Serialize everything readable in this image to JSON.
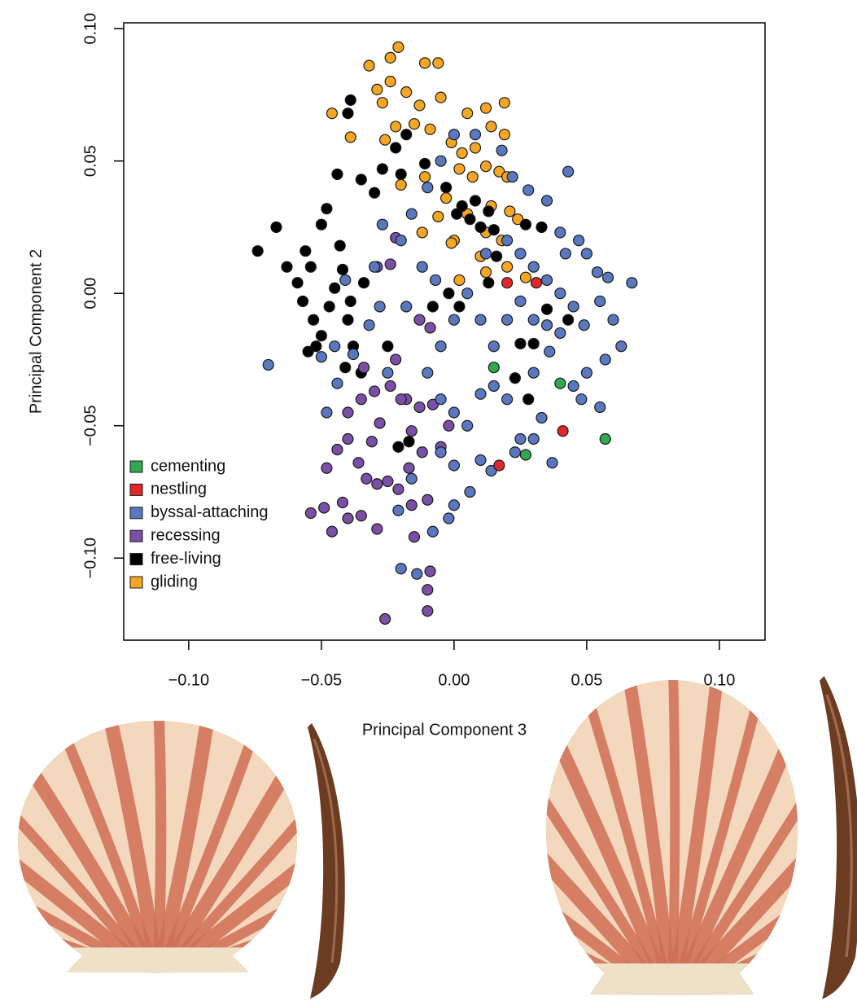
{
  "chart_data": {
    "type": "scatter",
    "xlabel": "Principal Component 3",
    "ylabel": "Principal Component 2",
    "xlim": [
      -0.1245,
      0.1172
    ],
    "ylim": [
      -0.131,
      0.1022
    ],
    "xticks": [
      {
        "value": -0.1,
        "label": "−0.10"
      },
      {
        "value": -0.05,
        "label": "−0.05"
      },
      {
        "value": 0,
        "label": "0.00"
      },
      {
        "value": 0.05,
        "label": "0.05"
      },
      {
        "value": 0.1,
        "label": "0.10"
      }
    ],
    "yticks": [
      {
        "value": -0.1,
        "label": "−0.10"
      },
      {
        "value": -0.05,
        "label": "−0.05"
      },
      {
        "value": 0,
        "label": "0.00"
      },
      {
        "value": 0.05,
        "label": "0.05"
      },
      {
        "value": 0.1,
        "label": "0.10"
      }
    ],
    "legend_position": "lower left",
    "series": [
      {
        "name": "cementing",
        "color": "#2fa84f",
        "x": [
          0.015,
          0.04,
          0.027,
          0.057
        ],
        "y": [
          -0.028,
          -0.034,
          -0.061,
          -0.055
        ]
      },
      {
        "name": "nestling",
        "color": "#e3262a",
        "x": [
          0.02,
          0.031,
          0.041,
          0.017
        ],
        "y": [
          0.004,
          0.004,
          -0.052,
          -0.065
        ]
      },
      {
        "name": "byssal-attaching",
        "color": "#5a78c0",
        "x": [
          -0.07,
          -0.048,
          -0.05,
          -0.044,
          -0.038,
          -0.032,
          -0.025,
          -0.018,
          -0.02,
          -0.016,
          -0.01,
          -0.005,
          0.0,
          0.008,
          0.018,
          0.022,
          0.028,
          0.035,
          0.043,
          0.04,
          0.047,
          0.05,
          0.054,
          0.058,
          0.067,
          0.055,
          0.06,
          0.063,
          0.057,
          0.05,
          0.045,
          0.055,
          0.048,
          0.036,
          0.03,
          0.025,
          0.02,
          0.015,
          0.01,
          0.005,
          0.0,
          -0.005,
          -0.01,
          -0.005,
          0.0,
          0.005,
          0.01,
          0.02,
          0.025,
          0.03,
          0.037,
          0.023,
          0.01,
          0.014,
          0.006,
          -0.002,
          0.0,
          -0.008,
          -0.02,
          -0.014,
          -0.021,
          -0.016,
          -0.005,
          0.0,
          0.03,
          0.035,
          0.04,
          0.045,
          0.04,
          0.035,
          0.03,
          0.02,
          0.025,
          0.012,
          -0.012,
          -0.007,
          0.033,
          0.015,
          0.042,
          0.049,
          -0.027,
          -0.03,
          -0.028,
          -0.045,
          -0.041
        ],
        "y": [
          -0.027,
          -0.045,
          -0.024,
          -0.034,
          -0.023,
          -0.012,
          -0.03,
          -0.005,
          0.02,
          0.03,
          0.04,
          0.05,
          0.06,
          0.06,
          0.054,
          0.044,
          0.039,
          0.035,
          0.046,
          0.023,
          0.02,
          0.015,
          0.008,
          0.006,
          0.004,
          -0.003,
          -0.01,
          -0.02,
          -0.025,
          -0.03,
          -0.035,
          -0.043,
          -0.04,
          -0.022,
          -0.01,
          -0.003,
          -0.01,
          -0.02,
          -0.01,
          0.0,
          -0.01,
          -0.02,
          -0.03,
          -0.04,
          -0.045,
          -0.05,
          -0.038,
          -0.04,
          -0.055,
          -0.055,
          -0.064,
          -0.06,
          -0.063,
          -0.067,
          -0.075,
          -0.085,
          -0.08,
          -0.09,
          -0.104,
          -0.106,
          -0.082,
          -0.07,
          -0.06,
          -0.065,
          0.01,
          0.005,
          0.0,
          -0.005,
          -0.015,
          -0.012,
          -0.03,
          0.02,
          0.015,
          0.015,
          0.01,
          0.005,
          -0.047,
          -0.035,
          0.015,
          -0.012,
          0.026,
          0.01,
          -0.005,
          -0.02,
          0.005
        ]
      },
      {
        "name": "recessing",
        "color": "#7b4fa6",
        "x": [
          -0.054,
          -0.049,
          -0.046,
          -0.042,
          -0.04,
          -0.035,
          -0.048,
          -0.044,
          -0.04,
          -0.036,
          -0.033,
          -0.029,
          -0.025,
          -0.021,
          -0.031,
          -0.028,
          -0.04,
          -0.035,
          -0.03,
          -0.024,
          -0.018,
          -0.013,
          -0.008,
          -0.016,
          -0.012,
          -0.017,
          -0.01,
          -0.016,
          -0.015,
          -0.029,
          -0.026,
          -0.009,
          -0.01,
          -0.01,
          -0.034,
          -0.022,
          -0.029,
          -0.024,
          -0.013,
          -0.022,
          -0.009,
          -0.02,
          -0.002,
          -0.005
        ],
        "y": [
          -0.083,
          -0.081,
          -0.09,
          -0.079,
          -0.085,
          -0.084,
          -0.066,
          -0.059,
          -0.055,
          -0.064,
          -0.07,
          -0.072,
          -0.071,
          -0.074,
          -0.056,
          -0.049,
          -0.045,
          -0.04,
          -0.037,
          -0.035,
          -0.04,
          -0.043,
          -0.042,
          -0.052,
          -0.06,
          -0.066,
          -0.078,
          -0.08,
          -0.092,
          -0.089,
          -0.123,
          -0.105,
          -0.112,
          -0.12,
          -0.028,
          -0.025,
          0.01,
          0.011,
          -0.01,
          0.021,
          -0.013,
          -0.04,
          -0.05,
          -0.058
        ]
      },
      {
        "name": "free-living",
        "color": "#000000",
        "x": [
          -0.074,
          -0.067,
          -0.063,
          -0.059,
          -0.056,
          -0.054,
          -0.057,
          -0.053,
          -0.05,
          -0.055,
          -0.052,
          -0.047,
          -0.045,
          -0.042,
          -0.05,
          -0.048,
          -0.044,
          -0.039,
          -0.04,
          -0.035,
          -0.03,
          -0.027,
          -0.022,
          -0.018,
          -0.011,
          -0.04,
          -0.038,
          -0.041,
          -0.035,
          -0.025,
          -0.039,
          -0.043,
          -0.034,
          -0.021,
          -0.017,
          0.003,
          0.006,
          0.01,
          0.013,
          0.001,
          0.016,
          0.008,
          0.015,
          -0.003,
          0.002,
          0.025,
          0.03,
          0.023,
          0.028,
          0.035,
          0.043,
          0.027,
          0.033,
          0.013,
          -0.008,
          -0.002,
          -0.02
        ],
        "y": [
          0.016,
          0.025,
          0.01,
          0.004,
          0.016,
          0.01,
          -0.003,
          -0.01,
          -0.016,
          -0.022,
          -0.02,
          -0.005,
          0.002,
          0.009,
          0.026,
          0.032,
          0.045,
          0.073,
          0.068,
          0.043,
          0.038,
          0.047,
          0.055,
          0.06,
          0.049,
          -0.01,
          -0.02,
          -0.028,
          -0.03,
          -0.02,
          -0.003,
          0.018,
          0.004,
          -0.058,
          -0.056,
          0.033,
          0.028,
          0.025,
          0.031,
          0.03,
          0.014,
          0.035,
          0.024,
          0.04,
          -0.005,
          -0.019,
          -0.019,
          -0.032,
          -0.04,
          -0.006,
          -0.01,
          0.026,
          0.025,
          0.004,
          -0.005,
          0.0,
          0.045
        ]
      },
      {
        "name": "gliding",
        "color": "#f5a623",
        "x": [
          -0.021,
          -0.024,
          -0.032,
          -0.011,
          -0.006,
          -0.029,
          -0.024,
          -0.018,
          -0.013,
          -0.005,
          -0.046,
          -0.027,
          -0.022,
          -0.026,
          -0.015,
          -0.009,
          0.005,
          0.012,
          0.019,
          0.014,
          0.019,
          -0.001,
          0.003,
          0.008,
          0.002,
          0.007,
          0.012,
          0.017,
          0.02,
          -0.039,
          -0.011,
          -0.02,
          -0.003,
          0.005,
          0.014,
          0.021,
          0.024,
          -0.006,
          -0.012,
          0.0,
          0.012,
          0.018,
          0.01,
          0.02,
          0.027,
          0.012,
          0.002,
          -0.001
        ],
        "y": [
          0.093,
          0.089,
          0.086,
          0.087,
          0.087,
          0.077,
          0.08,
          0.076,
          0.071,
          0.074,
          0.068,
          0.072,
          0.063,
          0.058,
          0.064,
          0.062,
          0.068,
          0.07,
          0.072,
          0.063,
          0.06,
          0.057,
          0.053,
          0.055,
          0.047,
          0.044,
          0.048,
          0.046,
          0.044,
          0.059,
          0.044,
          0.041,
          0.036,
          0.03,
          0.033,
          0.031,
          0.028,
          0.029,
          0.023,
          0.02,
          0.023,
          0.02,
          0.014,
          0.01,
          0.006,
          0.008,
          0.005,
          0.019
        ]
      }
    ]
  }
}
